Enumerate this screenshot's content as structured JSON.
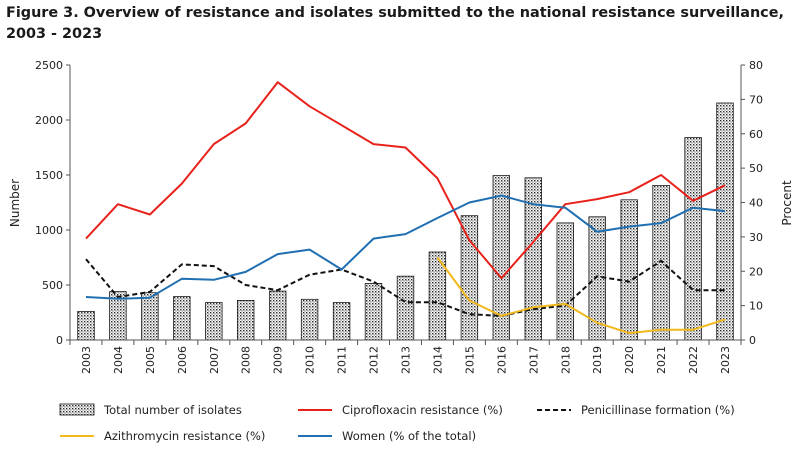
{
  "chart_data": {
    "type": "bar+line",
    "title_line1": "Figure 3. Overview of resistance  and isolates submitted to the national resistance  surveillance,",
    "title_line2": "2003 - 2023",
    "categories": [
      "2003",
      "2004",
      "2005",
      "2006",
      "2007",
      "2008",
      "2009",
      "2010",
      "2011",
      "2012",
      "2013",
      "2014",
      "2015",
      "2016",
      "2017",
      "2018",
      "2019",
      "2020",
      "2021",
      "2022",
      "2023"
    ],
    "left_axis": {
      "label": "Number",
      "min": 0,
      "max": 2500,
      "ticks": [
        "0",
        "500",
        "1000",
        "1500",
        "2000",
        "2500"
      ]
    },
    "right_axis": {
      "label": "Procent",
      "min": 0,
      "max": 80,
      "ticks": [
        "0",
        "10",
        "20",
        "30",
        "40",
        "50",
        "60",
        "70",
        "80"
      ]
    },
    "bar_series": {
      "name": "Total number of isolates",
      "axis": "left",
      "values": [
        260,
        440,
        430,
        395,
        340,
        360,
        445,
        370,
        340,
        515,
        580,
        800,
        1130,
        1495,
        1475,
        1065,
        1120,
        1275,
        1405,
        1840,
        2155
      ]
    },
    "line_series": [
      {
        "name": "Ciprofloxacin resistance (%)",
        "axis": "right",
        "color": "#e8221b",
        "dash": "none",
        "start": 0,
        "values": [
          29.5,
          39.5,
          36.5,
          45.5,
          57,
          63,
          75,
          68,
          62.5,
          57,
          56,
          47,
          29,
          18,
          28.5,
          39.5,
          41,
          43,
          48,
          40.5,
          45
        ]
      },
      {
        "name": "Penicillinase formation (%)",
        "axis": "right",
        "color": "#111111",
        "dash": "5,3",
        "start": 0,
        "values": [
          23.5,
          12.5,
          14,
          22,
          21.5,
          16,
          14.5,
          19,
          20.5,
          17,
          11,
          11,
          7.5,
          7,
          9,
          10,
          18.5,
          17,
          23,
          14.5,
          14.5
        ]
      },
      {
        "name": "Azithromycin resistance (%)",
        "axis": "right",
        "color": "#f2b81c",
        "dash": "none",
        "start": 11,
        "values": [
          24,
          11.5,
          7,
          9.5,
          10.5,
          5,
          2,
          3,
          3,
          6
        ]
      },
      {
        "name": "Women (% of the total)",
        "axis": "right",
        "color": "#1f6fb2",
        "dash": "none",
        "start": 0,
        "values": [
          12.5,
          12,
          12.3,
          17.8,
          17.5,
          19.8,
          25,
          26.3,
          20.5,
          29.5,
          30.8,
          35.5,
          40,
          42,
          39.5,
          38.5,
          31.5,
          33,
          34,
          38.5,
          37.5
        ]
      }
    ],
    "legend": {
      "position": "bottom",
      "items": [
        {
          "label": "Total number of isolates",
          "kind": "bar"
        },
        {
          "label": "Ciprofloxacin resistance (%)",
          "kind": "line",
          "color": "#e8221b",
          "dash": "none"
        },
        {
          "label": "Penicillinase formation (%)",
          "kind": "line",
          "color": "#111111",
          "dash": "5,3"
        },
        {
          "label": "Azithromycin resistance (%)",
          "kind": "line",
          "color": "#f2b81c",
          "dash": "none"
        },
        {
          "label": "Women (% of the total)",
          "kind": "line",
          "color": "#1f6fb2",
          "dash": "none"
        }
      ]
    },
    "grid": false
  }
}
